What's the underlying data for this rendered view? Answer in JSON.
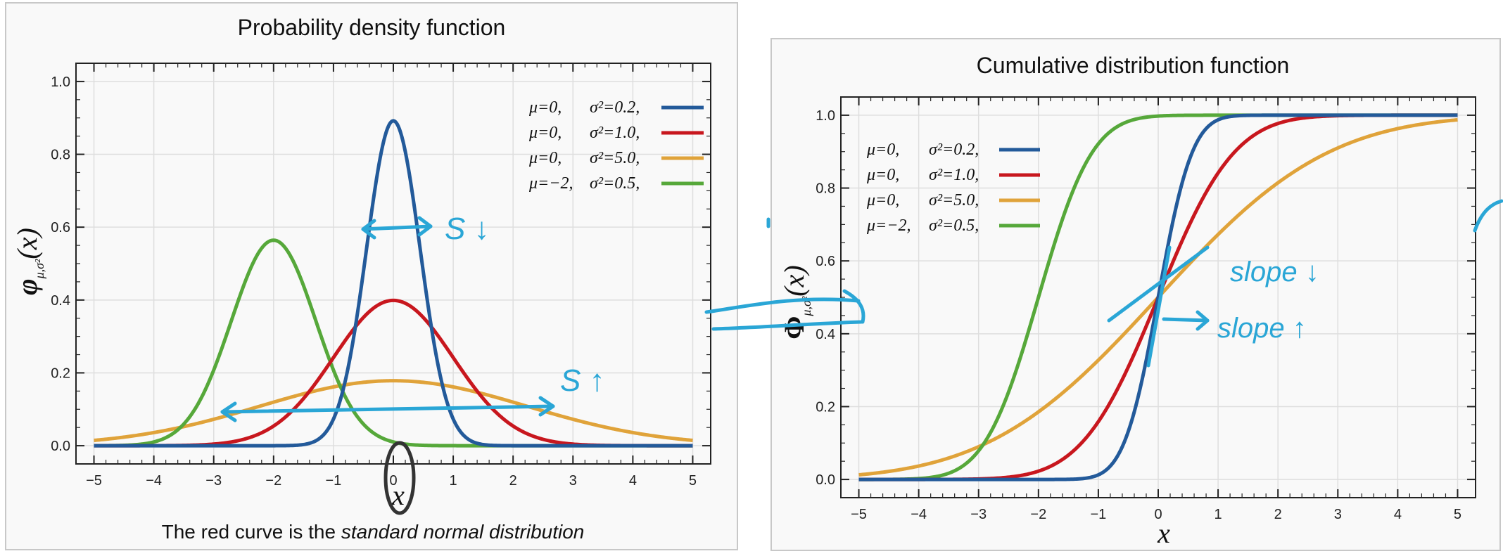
{
  "colors": {
    "blue": "#235a9a",
    "red": "#c8171e",
    "orange": "#e0a33a",
    "green": "#56a83a",
    "annotation": "#2aa6d6",
    "grid": "#dedede",
    "panel_bg": "#f9f9f9"
  },
  "chart_data": [
    {
      "type": "line",
      "function": "pdf",
      "title": "Probability density function",
      "xlabel": "x",
      "ylabel": "φμ,σ²(x)",
      "ylabel_main": "φ",
      "ylabel_sub": "μ,σ²",
      "ylabel_arg": "(x)",
      "caption_prefix": "The red curve is the ",
      "caption_emphasis": "standard normal distribution",
      "xlim": [
        -5.3,
        5.3
      ],
      "ylim": [
        -0.05,
        1.05
      ],
      "xticks": [
        "−5",
        "−4",
        "−3",
        "−2",
        "−1",
        "0",
        "1",
        "2",
        "3",
        "4",
        "5"
      ],
      "yticks": [
        "0.0",
        "0.2",
        "0.4",
        "0.6",
        "0.8",
        "1.0"
      ],
      "legend_position": "top-right",
      "series": [
        {
          "name": "μ=0, σ²=0.2,",
          "mu_label": "μ=0,",
          "sigma_label": "σ²=0.2,",
          "mu": 0,
          "variance": 0.2,
          "color": "#235a9a"
        },
        {
          "name": "μ=0, σ²=1.0,",
          "mu_label": "μ=0,",
          "sigma_label": "σ²=1.0,",
          "mu": 0,
          "variance": 1.0,
          "color": "#c8171e"
        },
        {
          "name": "μ=0, σ²=5.0,",
          "mu_label": "μ=0,",
          "sigma_label": "σ²=5.0,",
          "mu": 0,
          "variance": 5.0,
          "color": "#e0a33a"
        },
        {
          "name": "μ=−2, σ²=0.5,",
          "mu_label": "μ=−2,",
          "sigma_label": "σ²=0.5,",
          "mu": -2,
          "variance": 0.5,
          "color": "#56a83a"
        }
      ],
      "annotations": [
        "S ↓",
        "S ↑"
      ]
    },
    {
      "type": "line",
      "function": "cdf",
      "title": "Cumulative distribution function",
      "xlabel": "x",
      "ylabel": "Φμ,σ²(x)",
      "ylabel_main": "Φ",
      "ylabel_sub": "μ,σ²",
      "ylabel_arg": "(x)",
      "xlim": [
        -5.3,
        5.3
      ],
      "ylim": [
        -0.05,
        1.05
      ],
      "xticks": [
        "−5",
        "−4",
        "−3",
        "−2",
        "−1",
        "0",
        "1",
        "2",
        "3",
        "4",
        "5"
      ],
      "yticks": [
        "0.0",
        "0.2",
        "0.4",
        "0.6",
        "0.8",
        "1.0"
      ],
      "legend_position": "top-left",
      "series": [
        {
          "name": "μ=0, σ²=0.2,",
          "mu_label": "μ=0,",
          "sigma_label": "σ²=0.2,",
          "mu": 0,
          "variance": 0.2,
          "color": "#235a9a"
        },
        {
          "name": "μ=0, σ²=1.0,",
          "mu_label": "μ=0,",
          "sigma_label": "σ²=1.0,",
          "mu": 0,
          "variance": 1.0,
          "color": "#c8171e"
        },
        {
          "name": "μ=0, σ²=5.0,",
          "mu_label": "μ=0,",
          "sigma_label": "σ²=5.0,",
          "mu": 0,
          "variance": 5.0,
          "color": "#e0a33a"
        },
        {
          "name": "μ=−2, σ²=0.5,",
          "mu_label": "μ=−2,",
          "sigma_label": "σ²=0.5,",
          "mu": -2,
          "variance": 0.5,
          "color": "#56a83a"
        }
      ],
      "annotations": [
        "slope ↓",
        "slope ↑"
      ]
    }
  ]
}
